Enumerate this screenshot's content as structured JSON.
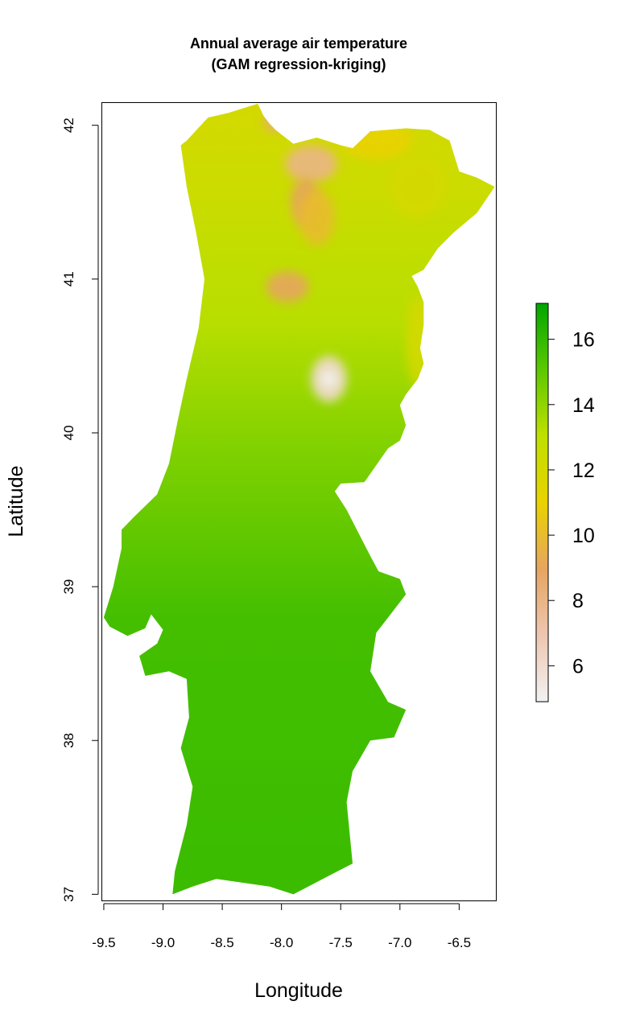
{
  "chart_data": {
    "type": "heatmap",
    "title": "Annual average air temperature",
    "subtitle": "(GAM regression-kriging)",
    "xlabel": "Longitude",
    "ylabel": "Latitude",
    "xlim": [
      -9.52,
      -6.19
    ],
    "ylim": [
      36.96,
      42.15
    ],
    "x_ticks": [
      -9.5,
      -9.0,
      -8.5,
      -8.0,
      -7.5,
      -7.0,
      -6.5
    ],
    "x_tick_labels": [
      "-9.5",
      "-9.0",
      "-8.5",
      "-8.0",
      "-7.5",
      "-7.0",
      "-6.5"
    ],
    "y_ticks": [
      37,
      38,
      39,
      40,
      41,
      42
    ],
    "y_tick_labels": [
      "37",
      "38",
      "39",
      "40",
      "41",
      "42"
    ],
    "colorbar": {
      "range": [
        4.9,
        17.1
      ],
      "ticks": [
        6,
        8,
        10,
        12,
        14,
        16
      ],
      "tick_labels": [
        "6",
        "8",
        "10",
        "12",
        "14",
        "16"
      ],
      "colors": [
        "#f2f2f2",
        "#eec6b0",
        "#e6a560",
        "#e9d200",
        "#bfe000",
        "#5cc800",
        "#00a600"
      ],
      "placement": "right"
    },
    "region_outline": [
      [
        -8.2,
        42.14
      ],
      [
        -8.15,
        42.06
      ],
      [
        -8.1,
        42.01
      ],
      [
        -8.05,
        41.97
      ],
      [
        -7.9,
        41.88
      ],
      [
        -7.7,
        41.92
      ],
      [
        -7.5,
        41.87
      ],
      [
        -7.4,
        41.85
      ],
      [
        -7.25,
        41.96
      ],
      [
        -7.1,
        41.97
      ],
      [
        -6.95,
        41.98
      ],
      [
        -6.75,
        41.97
      ],
      [
        -6.58,
        41.9
      ],
      [
        -6.5,
        41.7
      ],
      [
        -6.35,
        41.66
      ],
      [
        -6.2,
        41.6
      ],
      [
        -6.35,
        41.43
      ],
      [
        -6.55,
        41.3
      ],
      [
        -6.68,
        41.2
      ],
      [
        -6.8,
        41.06
      ],
      [
        -6.9,
        41.02
      ],
      [
        -6.85,
        40.95
      ],
      [
        -6.8,
        40.85
      ],
      [
        -6.8,
        40.7
      ],
      [
        -6.83,
        40.55
      ],
      [
        -6.8,
        40.45
      ],
      [
        -6.85,
        40.35
      ],
      [
        -6.95,
        40.25
      ],
      [
        -7.0,
        40.18
      ],
      [
        -6.95,
        40.05
      ],
      [
        -7.0,
        39.95
      ],
      [
        -7.1,
        39.9
      ],
      [
        -7.3,
        39.68
      ],
      [
        -7.5,
        39.67
      ],
      [
        -7.55,
        39.62
      ],
      [
        -7.45,
        39.5
      ],
      [
        -7.35,
        39.35
      ],
      [
        -7.25,
        39.2
      ],
      [
        -7.18,
        39.1
      ],
      [
        -7.0,
        39.05
      ],
      [
        -6.95,
        38.95
      ],
      [
        -7.05,
        38.85
      ],
      [
        -7.2,
        38.7
      ],
      [
        -7.25,
        38.45
      ],
      [
        -7.1,
        38.25
      ],
      [
        -6.95,
        38.2
      ],
      [
        -7.05,
        38.02
      ],
      [
        -7.25,
        38.0
      ],
      [
        -7.4,
        37.8
      ],
      [
        -7.45,
        37.6
      ],
      [
        -7.4,
        37.2
      ],
      [
        -7.6,
        37.12
      ],
      [
        -7.9,
        37.0
      ],
      [
        -8.1,
        37.05
      ],
      [
        -8.55,
        37.1
      ],
      [
        -8.75,
        37.05
      ],
      [
        -8.92,
        37.0
      ],
      [
        -8.9,
        37.15
      ],
      [
        -8.8,
        37.45
      ],
      [
        -8.75,
        37.7
      ],
      [
        -8.85,
        37.95
      ],
      [
        -8.78,
        38.15
      ],
      [
        -8.8,
        38.4
      ],
      [
        -8.95,
        38.45
      ],
      [
        -9.15,
        38.42
      ],
      [
        -9.2,
        38.55
      ],
      [
        -9.05,
        38.63
      ],
      [
        -9.0,
        38.72
      ],
      [
        -9.1,
        38.82
      ],
      [
        -9.15,
        38.73
      ],
      [
        -9.3,
        38.68
      ],
      [
        -9.45,
        38.74
      ],
      [
        -9.5,
        38.8
      ],
      [
        -9.42,
        39.0
      ],
      [
        -9.35,
        39.25
      ],
      [
        -9.35,
        39.37
      ],
      [
        -9.25,
        39.45
      ],
      [
        -9.05,
        39.6
      ],
      [
        -8.95,
        39.8
      ],
      [
        -8.87,
        40.1
      ],
      [
        -8.8,
        40.35
      ],
      [
        -8.7,
        40.68
      ],
      [
        -8.65,
        41.0
      ],
      [
        -8.72,
        41.3
      ],
      [
        -8.8,
        41.6
      ],
      [
        -8.85,
        41.87
      ],
      [
        -8.8,
        41.9
      ],
      [
        -8.62,
        42.05
      ],
      [
        -8.45,
        42.08
      ]
    ],
    "cold_zones": [
      {
        "lon": -7.6,
        "lat": 40.35,
        "rx": 0.15,
        "ry": 0.15,
        "value": 6.0
      },
      {
        "lon": -7.6,
        "lat": 40.35,
        "rx": 0.07,
        "ry": 0.06,
        "value": 5.0
      },
      {
        "lon": -7.75,
        "lat": 41.75,
        "rx": 0.22,
        "ry": 0.12,
        "value": 8.0
      },
      {
        "lon": -7.8,
        "lat": 41.5,
        "rx": 0.12,
        "ry": 0.16,
        "value": 9.0
      },
      {
        "lon": -8.05,
        "lat": 42.02,
        "rx": 0.1,
        "ry": 0.06,
        "value": 8.5
      },
      {
        "lon": -7.95,
        "lat": 40.95,
        "rx": 0.18,
        "ry": 0.1,
        "value": 9.0
      },
      {
        "lon": -7.7,
        "lat": 41.4,
        "rx": 0.15,
        "ry": 0.18,
        "value": 10.0
      },
      {
        "lon": -7.2,
        "lat": 41.9,
        "rx": 0.3,
        "ry": 0.12,
        "value": 11.0
      },
      {
        "lon": -6.85,
        "lat": 41.6,
        "rx": 0.25,
        "ry": 0.2,
        "value": 12.0
      },
      {
        "lon": -6.85,
        "lat": 40.6,
        "rx": 0.1,
        "ry": 0.3,
        "value": 12.0
      }
    ]
  }
}
